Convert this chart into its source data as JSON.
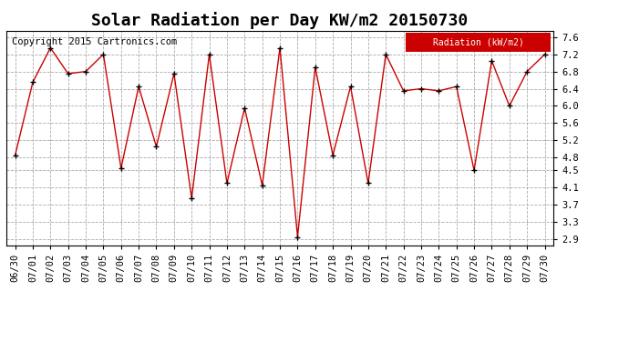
{
  "title": "Solar Radiation per Day KW/m2 20150730",
  "copyright_text": "Copyright 2015 Cartronics.com",
  "legend_label": "Radiation (kW/m2)",
  "dates": [
    "06/30",
    "07/01",
    "07/02",
    "07/03",
    "07/04",
    "07/05",
    "07/06",
    "07/07",
    "07/08",
    "07/09",
    "07/10",
    "07/11",
    "07/12",
    "07/13",
    "07/14",
    "07/15",
    "07/16",
    "07/17",
    "07/18",
    "07/19",
    "07/20",
    "07/21",
    "07/22",
    "07/23",
    "07/24",
    "07/25",
    "07/26",
    "07/27",
    "07/28",
    "07/29",
    "07/30"
  ],
  "values": [
    4.85,
    6.55,
    7.35,
    6.75,
    6.8,
    7.2,
    4.55,
    6.45,
    5.05,
    6.75,
    3.85,
    7.2,
    4.2,
    5.95,
    4.15,
    7.35,
    2.95,
    6.9,
    4.85,
    6.45,
    4.2,
    7.2,
    6.35,
    6.4,
    6.35,
    6.45,
    4.5,
    7.05,
    6.0,
    6.8,
    7.2
  ],
  "line_color": "#cc0000",
  "marker_color": "#000000",
  "background_color": "#ffffff",
  "grid_color": "#aaaaaa",
  "ylim": [
    2.75,
    7.75
  ],
  "yticks": [
    2.9,
    3.3,
    3.7,
    4.1,
    4.5,
    4.8,
    5.2,
    5.6,
    6.0,
    6.4,
    6.8,
    7.2,
    7.6
  ],
  "legend_bg": "#cc0000",
  "legend_text_color": "#ffffff",
  "title_fontsize": 13,
  "tick_fontsize": 7.5,
  "copyright_fontsize": 7.5
}
